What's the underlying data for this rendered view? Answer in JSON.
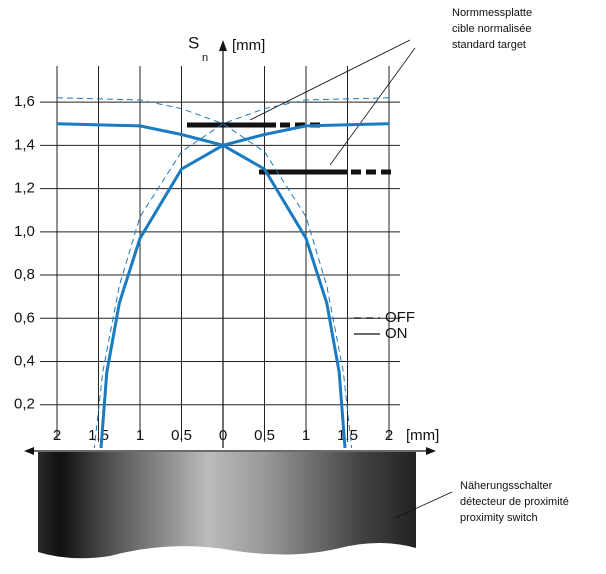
{
  "chart_data": {
    "type": "line",
    "y_label": "S",
    "y_label_sub": "n",
    "y_unit": "[mm]",
    "x_unit": "[mm]",
    "xlim": [
      -2,
      2
    ],
    "ylim": [
      0,
      1.73
    ],
    "xticks": [
      {
        "value": -2,
        "label": "2"
      },
      {
        "value": -1.5,
        "label": "1,5"
      },
      {
        "value": -1,
        "label": "1"
      },
      {
        "value": -0.5,
        "label": "0,5"
      },
      0,
      {
        "value": 0.5,
        "label": "0,5"
      },
      1,
      {
        "value": 1.5,
        "label": "1,5"
      },
      2
    ],
    "yticks": [
      {
        "value": 0.2,
        "label": "0,2"
      },
      {
        "value": 0.4,
        "label": "0,4"
      },
      {
        "value": 0.6,
        "label": "0,6"
      },
      {
        "value": 0.8,
        "label": "0,8"
      },
      {
        "value": 1.0,
        "label": "1,0"
      },
      {
        "value": 1.2,
        "label": "1,2"
      },
      {
        "value": 1.4,
        "label": "1,4"
      },
      {
        "value": 1.6,
        "label": "1,6"
      }
    ],
    "grid": true,
    "series": [
      {
        "name": "OFF",
        "color": "#1b7bc1",
        "style": "dashed",
        "x": [
          -2,
          -1,
          -0.5,
          0,
          0.5,
          1,
          1.25,
          1.45,
          1.55
        ],
        "values": [
          1.62,
          1.61,
          1.57,
          1.5,
          1.37,
          1.07,
          0.75,
          0.35,
          0
        ]
      },
      {
        "name": "OFF",
        "color": "#1b7bc1",
        "style": "dashed",
        "x": [
          2,
          1,
          0.5,
          0,
          -0.5,
          -1,
          -1.25,
          -1.45,
          -1.55
        ],
        "values": [
          1.62,
          1.61,
          1.57,
          1.5,
          1.37,
          1.07,
          0.75,
          0.35,
          0
        ]
      },
      {
        "name": "ON",
        "color": "#1b7bc1",
        "style": "solid",
        "x": [
          -2,
          -1,
          -0.5,
          0,
          0.5,
          1,
          1.25,
          1.4,
          1.47
        ],
        "values": [
          1.5,
          1.49,
          1.45,
          1.4,
          1.29,
          0.97,
          0.67,
          0.35,
          0
        ]
      },
      {
        "name": "ON",
        "color": "#1b7bc1",
        "style": "solid",
        "x": [
          2,
          1,
          0.5,
          0,
          -0.5,
          -1,
          -1.25,
          -1.4,
          -1.47
        ],
        "values": [
          1.5,
          1.49,
          1.45,
          1.4,
          1.29,
          0.97,
          0.67,
          0.35,
          0
        ]
      }
    ],
    "annotations": {
      "target": [
        "Normmessplatte",
        "cible normalisée",
        "standard target"
      ],
      "switch": [
        "Näherungsschalter",
        "détecteur de proximité",
        "proximity switch"
      ]
    }
  }
}
